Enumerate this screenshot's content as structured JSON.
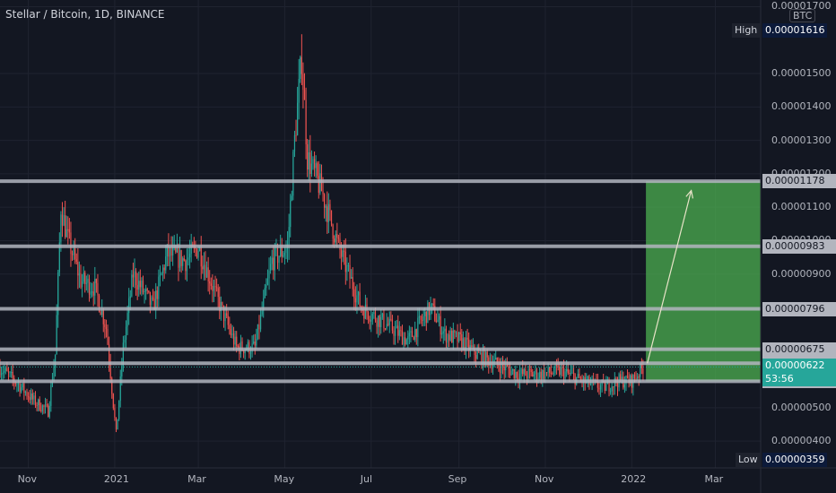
{
  "header": {
    "title": "Stellar / Bitcoin, 1D, BINANCE"
  },
  "price_axis": {
    "currency": "BTC",
    "ticks": [
      "0.00001700",
      "0.00001500",
      "0.00001400",
      "0.00001300",
      "0.00001200",
      "0.00001100",
      "0.00001000",
      "0.00000900",
      "0.00000500",
      "0.00000400"
    ],
    "high_label": "High",
    "high_value": "0.00001616",
    "low_label": "Low",
    "low_value": "0.00000359",
    "levels": [
      "0.00001178",
      "0.00000983",
      "0.00000796",
      "0.00000675",
      "0.00000633",
      "0.00000579"
    ],
    "current_price": "0.00000622",
    "countdown": "53:56"
  },
  "time_axis": {
    "labels": [
      "Nov",
      "2021",
      "Mar",
      "May",
      "Jul",
      "Sep",
      "Nov",
      "2022",
      "Mar"
    ]
  },
  "colors": {
    "background": "#131722",
    "up": "#26a69a",
    "down": "#ef5350",
    "level_line": "#b2b5be",
    "target_zone": "#4caf50",
    "current_tag": "#26a69a",
    "high_low_tag": "#1e222d"
  },
  "chart_data": {
    "type": "candlestick",
    "symbol": "XLM/BTC",
    "interval": "1D",
    "exchange": "BINANCE",
    "ylim": [
      3.2e-06,
      1.72e-05
    ],
    "x_range": [
      "2020-10-12",
      "2022-04-02"
    ],
    "high": 1.616e-05,
    "low": 3.59e-06,
    "horizontal_levels": [
      1.178e-05,
      9.83e-06,
      7.96e-06,
      6.75e-06,
      6.33e-06,
      5.79e-06
    ],
    "target_zone": {
      "from": 5.79e-06,
      "to": 1.178e-05,
      "start": "2022-01-11",
      "end": "2022-04-02"
    },
    "arrow": {
      "from": [
        "2022-01-12",
        6.33e-06
      ],
      "to": [
        "2022-02-12",
        1.15e-05
      ]
    },
    "price_path": [
      [
        "2020-10-12",
        6.2e-06
      ],
      [
        "2020-10-25",
        5.7e-06
      ],
      [
        "2020-11-05",
        5.2e-06
      ],
      [
        "2020-11-15",
        4.9e-06
      ],
      [
        "2020-11-20",
        6.6e-06
      ],
      [
        "2020-11-24",
        1.1e-05
      ],
      [
        "2020-11-28",
        1.02e-05
      ],
      [
        "2020-12-08",
        8.8e-06
      ],
      [
        "2020-12-18",
        8.6e-06
      ],
      [
        "2020-12-26",
        7.4e-06
      ],
      [
        "2021-01-02",
        4.2e-06
      ],
      [
        "2021-01-07",
        6.8e-06
      ],
      [
        "2021-01-14",
        9e-06
      ],
      [
        "2021-01-28",
        8e-06
      ],
      [
        "2021-02-07",
        9.6e-06
      ],
      [
        "2021-02-20",
        9.4e-06
      ],
      [
        "2021-03-01",
        9.8e-06
      ],
      [
        "2021-03-14",
        8.3e-06
      ],
      [
        "2021-03-28",
        6.8e-06
      ],
      [
        "2021-04-10",
        6.8e-06
      ],
      [
        "2021-04-22",
        9.4e-06
      ],
      [
        "2021-05-03",
        9.8e-06
      ],
      [
        "2021-05-08",
        1.3e-05
      ],
      [
        "2021-05-13",
        1.55e-05
      ],
      [
        "2021-05-17",
        1.25e-05
      ],
      [
        "2021-05-27",
        1.15e-05
      ],
      [
        "2021-06-08",
        9.8e-06
      ],
      [
        "2021-06-24",
        8e-06
      ],
      [
        "2021-07-12",
        7.5e-06
      ],
      [
        "2021-07-27",
        7e-06
      ],
      [
        "2021-08-12",
        8e-06
      ],
      [
        "2021-08-22",
        7.2e-06
      ],
      [
        "2021-09-03",
        7e-06
      ],
      [
        "2021-09-13",
        6.6e-06
      ],
      [
        "2021-09-28",
        6.3e-06
      ],
      [
        "2021-10-13",
        6e-06
      ],
      [
        "2021-10-28",
        6e-06
      ],
      [
        "2021-11-12",
        6.1e-06
      ],
      [
        "2021-11-27",
        5.8e-06
      ],
      [
        "2021-12-12",
        5.6e-06
      ],
      [
        "2021-12-22",
        5.8e-06
      ],
      [
        "2022-01-01",
        5.8e-06
      ],
      [
        "2022-01-09",
        6.2e-06
      ]
    ]
  }
}
